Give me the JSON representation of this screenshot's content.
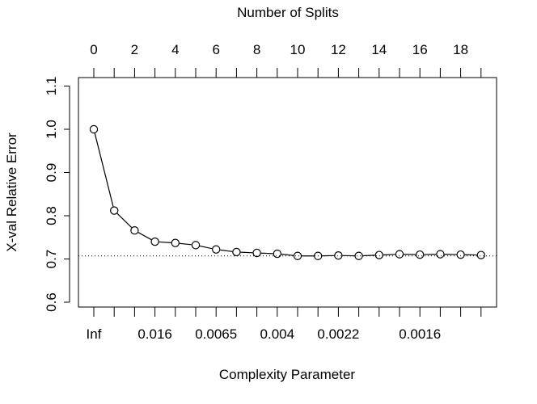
{
  "chart_data": {
    "type": "line",
    "title": "",
    "top_axis_label": "Number of Splits",
    "xlabel": "Complexity Parameter",
    "ylabel": "X-val Relative Error",
    "x": [
      0,
      1,
      2,
      3,
      4,
      5,
      6,
      7,
      8,
      9,
      10,
      11,
      12,
      13,
      14,
      15,
      16,
      17,
      18,
      19
    ],
    "values": [
      1.0,
      0.812,
      0.766,
      0.74,
      0.737,
      0.732,
      0.722,
      0.716,
      0.714,
      0.712,
      0.707,
      0.707,
      0.708,
      0.707,
      0.709,
      0.711,
      0.71,
      0.711,
      0.71,
      0.709
    ],
    "reference_line": 0.707,
    "xlim": [
      0,
      19
    ],
    "ylim": [
      0.6,
      1.1
    ],
    "y_ticks": [
      "0.6",
      "0.7",
      "0.8",
      "0.9",
      "1.0",
      "1.1"
    ],
    "top_ticks": [
      "0",
      "2",
      "4",
      "6",
      "8",
      "10",
      "12",
      "14",
      "16",
      "18"
    ],
    "bottom_tick_labels": [
      "Inf",
      "0.016",
      "0.0065",
      "0.004",
      "0.0022",
      "0.0016"
    ],
    "bottom_tick_label_positions": [
      0,
      3,
      6,
      9,
      12,
      16
    ],
    "grid": false,
    "legend": "none",
    "colors": {
      "line": "#000000",
      "reference": "#000000"
    }
  }
}
